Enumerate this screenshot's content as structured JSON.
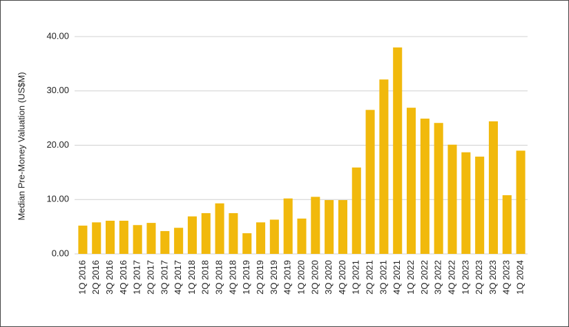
{
  "chart_data": {
    "type": "bar",
    "y_label": "Median Pre-Money Valuation (US$M)",
    "categories": [
      "1Q 2016",
      "2Q 2016",
      "3Q 2016",
      "4Q 2016",
      "1Q 2017",
      "2Q 2017",
      "3Q 2017",
      "4Q 2017",
      "1Q 2018",
      "2Q 2018",
      "3Q 2018",
      "4Q 2018",
      "1Q 2019",
      "2Q 2019",
      "3Q 2019",
      "4Q 2019",
      "1Q 2020",
      "2Q 2020",
      "3Q 2020",
      "4Q 2020",
      "1Q 2021",
      "2Q 2021",
      "3Q 2021",
      "4Q 2021",
      "1Q 2022",
      "2Q 2022",
      "3Q 2022",
      "4Q 2022",
      "1Q 2023",
      "2Q 2023",
      "3Q 2023",
      "4Q 2023",
      "1Q 2024"
    ],
    "values": [
      5.2,
      5.8,
      6.1,
      6.1,
      5.3,
      5.7,
      4.2,
      4.8,
      6.9,
      7.5,
      9.3,
      7.5,
      3.8,
      5.8,
      6.3,
      10.2,
      6.5,
      10.5,
      9.9,
      9.9,
      15.9,
      26.5,
      32.1,
      38.0,
      26.9,
      24.9,
      24.1,
      20.1,
      18.7,
      17.9,
      24.4,
      10.8,
      19.0
    ],
    "color": "#f1b90c",
    "ylim": [
      0,
      40
    ],
    "yticks": [
      {
        "value": 0,
        "label": "0.00"
      },
      {
        "value": 10,
        "label": "10.00"
      },
      {
        "value": 20,
        "label": "20.00"
      },
      {
        "value": 30,
        "label": "30.00"
      },
      {
        "value": 40,
        "label": "40.00"
      }
    ],
    "grid": true
  }
}
